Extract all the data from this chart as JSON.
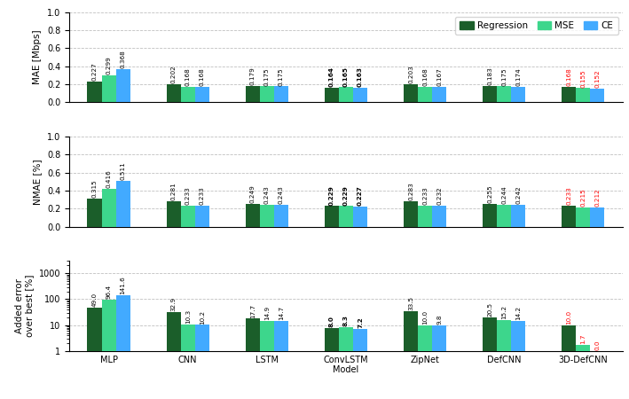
{
  "models": [
    "MLP",
    "CNN",
    "LSTM",
    "ConvLSTM",
    "ZipNet",
    "DefCNN",
    "3D-DefCNN"
  ],
  "mae": {
    "Regression": [
      0.227,
      0.202,
      0.179,
      0.164,
      0.203,
      0.183,
      0.168
    ],
    "MSE": [
      0.299,
      0.168,
      0.175,
      0.165,
      0.168,
      0.175,
      0.155
    ],
    "CE": [
      0.368,
      0.168,
      0.175,
      0.163,
      0.167,
      0.174,
      0.152
    ]
  },
  "nmae": {
    "Regression": [
      0.315,
      0.281,
      0.249,
      0.229,
      0.283,
      0.255,
      0.233
    ],
    "MSE": [
      0.416,
      0.233,
      0.243,
      0.229,
      0.233,
      0.244,
      0.215
    ],
    "CE": [
      0.511,
      0.233,
      0.243,
      0.227,
      0.232,
      0.242,
      0.212
    ]
  },
  "added_error": {
    "Regression": [
      49.0,
      32.9,
      17.7,
      8.0,
      33.5,
      20.5,
      10.0
    ],
    "MSE": [
      96.4,
      10.3,
      14.9,
      8.3,
      10.0,
      15.2,
      1.7
    ],
    "CE": [
      141.6,
      10.2,
      14.7,
      7.2,
      9.8,
      14.2,
      0.0
    ]
  },
  "colors": {
    "Regression": "#1b5e2a",
    "MSE": "#3dd68c",
    "CE": "#42aaff"
  },
  "bold_idx": {
    "mae": 3,
    "nmae": 3,
    "added_error": 3
  },
  "red_idx": {
    "mae": 6,
    "nmae": 6,
    "added_error": 6
  },
  "ylim_mae": [
    0,
    1.0
  ],
  "ylim_nmae": [
    0,
    1.0
  ],
  "yticks_linear": [
    0,
    0.2,
    0.4,
    0.6,
    0.8,
    1.0
  ],
  "ylabel_mae": "MAE [Mbps]",
  "ylabel_nmae": "NMAE [%]",
  "ylabel_added": "Added error\nover best [%]",
  "xlabel": "Model",
  "legend_labels": [
    "Regression",
    "MSE",
    "CE"
  ]
}
